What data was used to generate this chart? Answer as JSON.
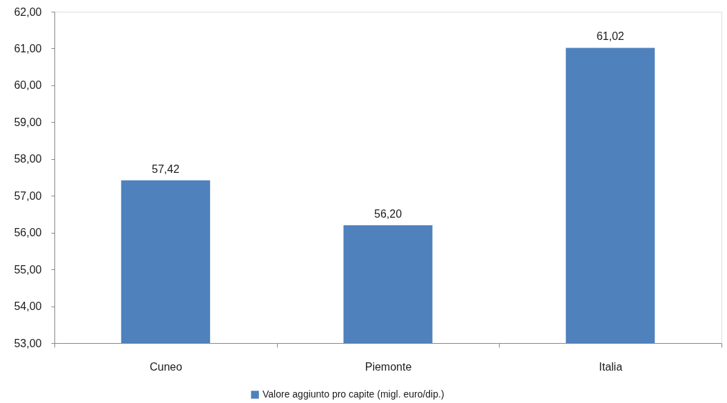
{
  "chart_data": {
    "type": "bar",
    "categories": [
      "Cuneo",
      "Piemonte",
      "Italia"
    ],
    "series": [
      {
        "name": "Valore aggiunto pro capite (migl. euro/dip.)",
        "color": "#4f81bd",
        "values": [
          57.42,
          56.2,
          61.02
        ],
        "value_labels": [
          "57,42",
          "56,20",
          "61,02"
        ]
      }
    ],
    "ylim": [
      53,
      62
    ],
    "yticks": [
      {
        "value": 53,
        "label": "53,00"
      },
      {
        "value": 54,
        "label": "54,00"
      },
      {
        "value": 55,
        "label": "55,00"
      },
      {
        "value": 56,
        "label": "56,00"
      },
      {
        "value": 57,
        "label": "57,00"
      },
      {
        "value": 58,
        "label": "58,00"
      },
      {
        "value": 59,
        "label": "59,00"
      },
      {
        "value": 60,
        "label": "60,00"
      },
      {
        "value": 61,
        "label": "61,00"
      },
      {
        "value": 62,
        "label": "62,00"
      }
    ],
    "legend": "bottom"
  }
}
